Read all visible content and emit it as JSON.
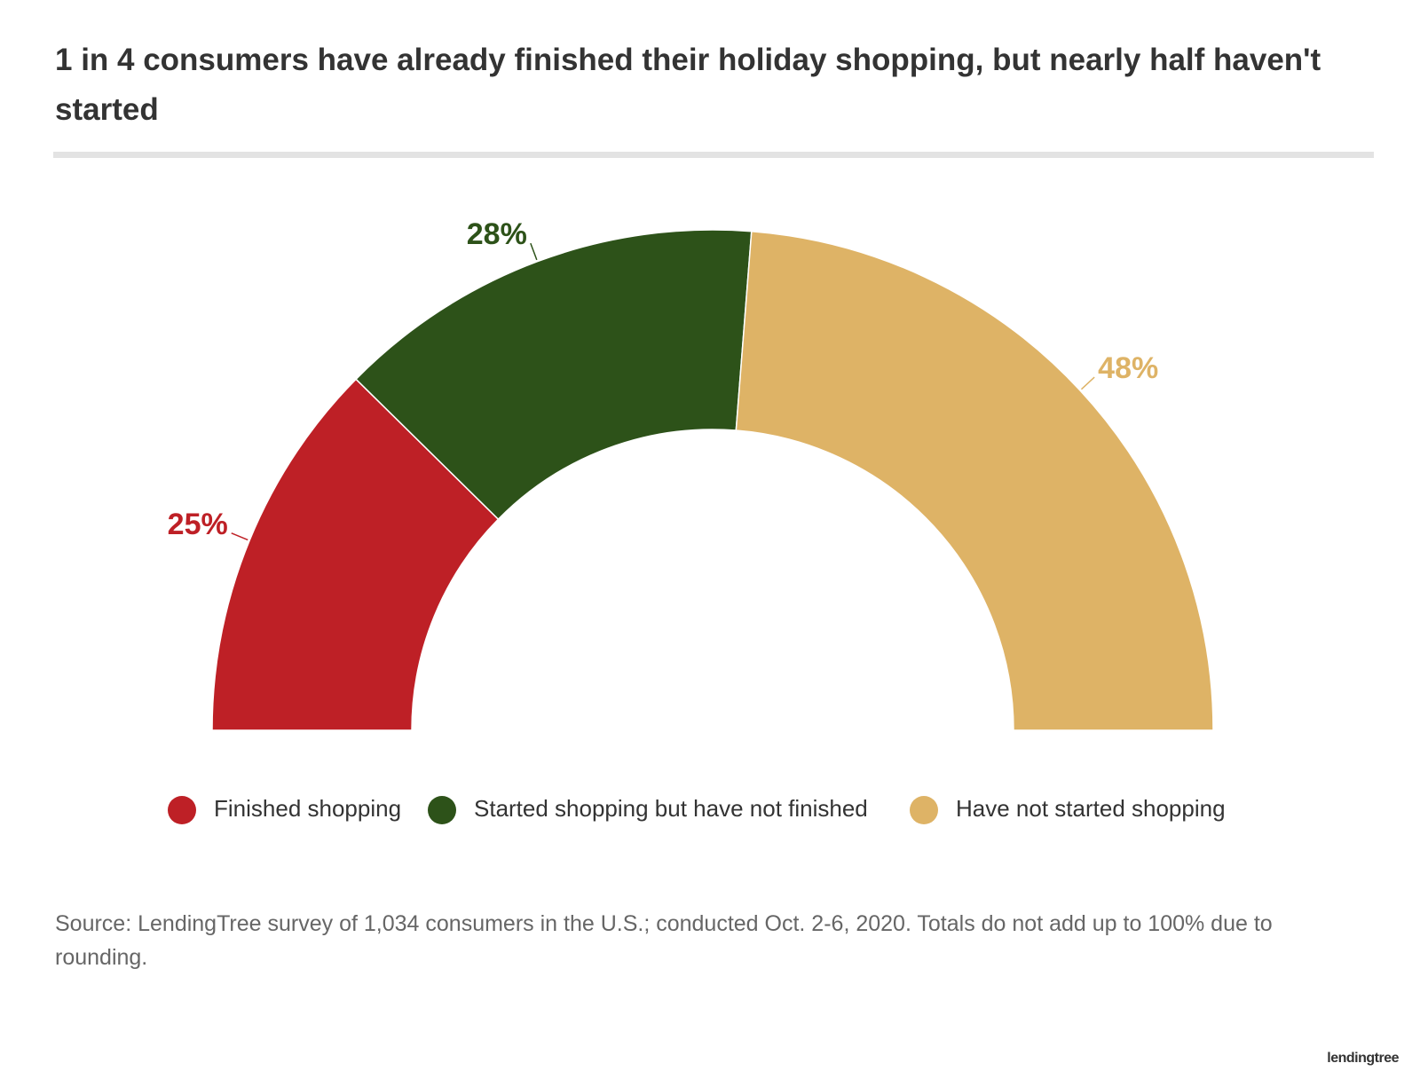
{
  "chart_data": {
    "type": "pie",
    "half": true,
    "title": "1 in 4 consumers have already finished their holiday shopping, but nearly half haven't started",
    "categories": [
      "Finished shopping",
      "Started shopping but have not finished",
      "Have not started shopping"
    ],
    "values": [
      25,
      28,
      48
    ],
    "value_labels": [
      "25%",
      "28%",
      "48%"
    ],
    "colors": [
      "#be2026",
      "#2d5219",
      "#deb366"
    ],
    "source": "Source: LendingTree survey of 1,034 consumers in the U.S.; conducted Oct. 2-6, 2020. Totals do not add up to 100% due to rounding.",
    "brand": "lendingtree"
  }
}
